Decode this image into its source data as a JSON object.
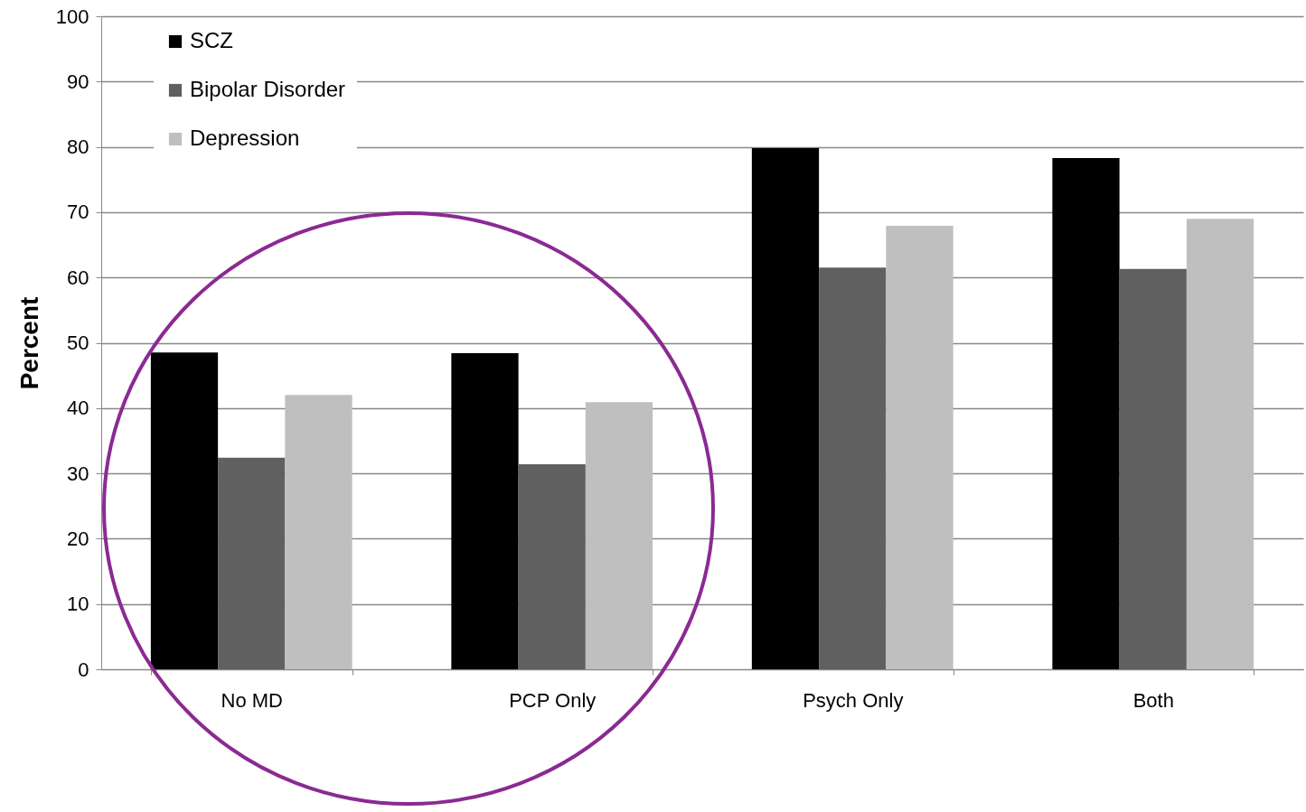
{
  "chart_data": {
    "type": "bar",
    "ylabel": "Percent",
    "categories": [
      "No MD",
      "PCP Only",
      "Psych Only",
      "Both"
    ],
    "series": [
      {
        "name": "SCZ",
        "color": "#000000",
        "values": [
          48.5,
          48.4,
          79.8,
          78.3
        ]
      },
      {
        "name": "Bipolar Disorder",
        "color": "#606060",
        "values": [
          32.4,
          31.4,
          61.5,
          61.3
        ]
      },
      {
        "name": "Depression",
        "color": "#bfbfbf",
        "values": [
          42.0,
          40.9,
          67.9,
          69.0
        ]
      }
    ],
    "ylim": [
      0,
      100
    ],
    "yticks": [
      0,
      10,
      20,
      30,
      40,
      50,
      60,
      70,
      80,
      90,
      100
    ],
    "grid": "y",
    "legend": "top left"
  }
}
